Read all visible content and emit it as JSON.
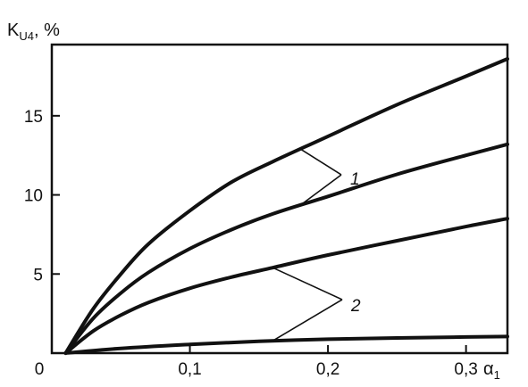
{
  "chart_data": {
    "type": "line",
    "ylabel": {
      "main": "K",
      "sub": "U4",
      "unit": ", %"
    },
    "xlabel": {
      "main": "α",
      "sub": "1"
    },
    "xlim": [
      0,
      0.33
    ],
    "ylim": [
      0,
      19.5
    ],
    "x_ticks": [
      {
        "value": 0,
        "label": "0"
      },
      {
        "value": 0.1,
        "label": "0,1"
      },
      {
        "value": 0.2,
        "label": "0,2"
      },
      {
        "value": 0.3,
        "label": "0,3"
      }
    ],
    "y_ticks": [
      {
        "value": 5,
        "label": "5"
      },
      {
        "value": 10,
        "label": "10"
      },
      {
        "value": 15,
        "label": "15"
      }
    ],
    "grid": false,
    "series": [
      {
        "x": [
          0.01,
          0.03,
          0.05,
          0.07,
          0.1,
          0.13,
          0.16,
          0.2,
          0.25,
          0.3,
          0.33
        ],
        "y": [
          0,
          2.8,
          5.0,
          6.9,
          9.0,
          10.8,
          12.1,
          13.7,
          15.7,
          17.5,
          18.6
        ]
      },
      {
        "x": [
          0.01,
          0.03,
          0.05,
          0.07,
          0.1,
          0.13,
          0.16,
          0.2,
          0.25,
          0.3,
          0.33
        ],
        "y": [
          0,
          2.2,
          3.8,
          5.1,
          6.6,
          7.8,
          8.8,
          9.9,
          11.3,
          12.5,
          13.2
        ]
      },
      {
        "x": [
          0.01,
          0.03,
          0.05,
          0.07,
          0.1,
          0.13,
          0.16,
          0.2,
          0.25,
          0.3,
          0.33
        ],
        "y": [
          0,
          1.4,
          2.4,
          3.2,
          4.1,
          4.8,
          5.4,
          6.2,
          7.1,
          8.0,
          8.5
        ]
      },
      {
        "x": [
          0.01,
          0.05,
          0.1,
          0.15,
          0.2,
          0.25,
          0.3,
          0.33
        ],
        "y": [
          0,
          0.3,
          0.55,
          0.75,
          0.88,
          0.96,
          1.02,
          1.05
        ]
      }
    ],
    "annotations": [
      {
        "text": "1",
        "targets": [
          {
            "series": 0,
            "x": 0.18
          },
          {
            "series": 1,
            "x": 0.18
          }
        ]
      },
      {
        "text": "2",
        "targets": [
          {
            "series": 2,
            "x": 0.16
          },
          {
            "series": 3,
            "x": 0.16
          }
        ]
      }
    ]
  }
}
